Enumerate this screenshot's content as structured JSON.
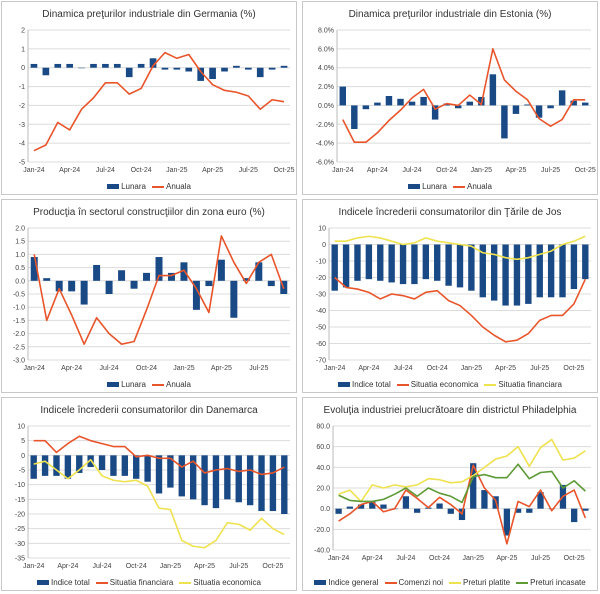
{
  "colors": {
    "bar": "#1a4a85",
    "orange": "#e8552b",
    "yellow": "#efe250",
    "green": "#5e9a35",
    "grid": "#dcdcdc"
  },
  "chart_data": [
    {
      "type": "bar+line",
      "title": "Dinamica preţurilor industriale din Germania (%)",
      "categories": [
        "Jan-24",
        "Feb-24",
        "Mar-24",
        "Apr-24",
        "May-24",
        "Jun-24",
        "Jul-24",
        "Aug-24",
        "Sep-24",
        "Oct-24",
        "Nov-24",
        "Dec-24",
        "Jan-25",
        "Feb-25",
        "Mar-25",
        "Apr-25",
        "May-25",
        "Jun-25",
        "Jul-25",
        "Aug-25",
        "Sep-25",
        "Oct-25"
      ],
      "xtick_labels": [
        "Jan-24",
        "Apr-24",
        "Jul-24",
        "Oct-24",
        "Jan-25",
        "Apr-25",
        "Jul-25",
        "Oct-25"
      ],
      "ylim": [
        -5,
        2
      ],
      "yticks": [
        2,
        1,
        0,
        -1,
        -2,
        -3,
        -4,
        -5
      ],
      "ytick_labels": [
        "2",
        "1",
        "0",
        "-1",
        "-2",
        "-3",
        "-4",
        "-5"
      ],
      "grid": true,
      "legend": "bottom",
      "series": [
        {
          "name": "Lunara",
          "kind": "bar",
          "color": "bar",
          "values": [
            0.2,
            -0.4,
            0.2,
            0.2,
            0,
            0.2,
            0.2,
            0.2,
            -0.5,
            0.2,
            0.5,
            -0.1,
            -0.1,
            -0.2,
            -0.7,
            -0.6,
            -0.2,
            0.1,
            -0.1,
            -0.5,
            -0.1,
            0.1
          ]
        },
        {
          "name": "Anuala",
          "kind": "line",
          "color": "orange",
          "values": [
            -4.4,
            -4.1,
            -2.9,
            -3.3,
            -2.2,
            -1.6,
            -0.8,
            -0.8,
            -1.4,
            -1.1,
            0.1,
            0.8,
            0.5,
            0.7,
            -0.2,
            -0.9,
            -1.2,
            -1.3,
            -1.5,
            -2.2,
            -1.7,
            -1.8
          ]
        }
      ]
    },
    {
      "type": "bar+line",
      "title": "Dinamica preţurilor industriale din Estonia (%)",
      "categories": [
        "Jan-24",
        "Feb-24",
        "Mar-24",
        "Apr-24",
        "May-24",
        "Jun-24",
        "Jul-24",
        "Aug-24",
        "Sep-24",
        "Oct-24",
        "Nov-24",
        "Dec-24",
        "Jan-25",
        "Feb-25",
        "Mar-25",
        "Apr-25",
        "May-25",
        "Jun-25",
        "Jul-25",
        "Aug-25",
        "Sep-25",
        "Oct-25"
      ],
      "xtick_labels": [
        "Jan-24",
        "Apr-24",
        "Jul-24",
        "Oct-24",
        "Jan-25",
        "Apr-25",
        "Jul-25",
        "Oct-25"
      ],
      "ylim": [
        -6,
        8
      ],
      "yticks": [
        8,
        6,
        4,
        2,
        0,
        -2,
        -4,
        -6
      ],
      "ytick_labels": [
        "8.0%",
        "6.0%",
        "4.0%",
        "2.0%",
        "0.0%",
        "-2.0%",
        "-4.0%",
        "-6.0%"
      ],
      "grid": true,
      "legend": "bottom",
      "series": [
        {
          "name": "Lunara",
          "kind": "bar",
          "color": "bar",
          "values": [
            2.0,
            -2.5,
            -0.4,
            0.3,
            1.0,
            0.7,
            0.4,
            0.9,
            -1.5,
            0.2,
            -0.3,
            0.4,
            0.9,
            3.3,
            -3.5,
            -0.9,
            0.1,
            -1.3,
            -0.3,
            1.6,
            0.5,
            0.3
          ]
        },
        {
          "name": "Anuala",
          "kind": "line",
          "color": "orange",
          "values": [
            -1.5,
            -3.9,
            -3.9,
            -2.9,
            -1.6,
            -0.5,
            0.8,
            1.7,
            -0.4,
            0.2,
            0.0,
            1.1,
            0.1,
            6.0,
            2.7,
            1.5,
            0.6,
            -1.4,
            -2.2,
            -1.5,
            0.6,
            0.6
          ]
        }
      ]
    },
    {
      "type": "bar+line",
      "title": "Producţia în sectorul construcţiilor din zona euro (%)",
      "categories": [
        "Jan-24",
        "Feb-24",
        "Mar-24",
        "Apr-24",
        "May-24",
        "Jun-24",
        "Jul-24",
        "Aug-24",
        "Sep-24",
        "Oct-24",
        "Nov-24",
        "Dec-24",
        "Jan-25",
        "Feb-25",
        "Mar-25",
        "Apr-25",
        "May-25",
        "Jun-25",
        "Jul-25",
        "Aug-25",
        "Sep-25"
      ],
      "xtick_labels": [
        "Jan-24",
        "Apr-24",
        "Jul-24",
        "Oct-24",
        "Jan-25",
        "Apr-25",
        "Jul-25"
      ],
      "ylim": [
        -3,
        2
      ],
      "yticks": [
        2,
        1.5,
        1,
        0.5,
        0,
        -0.5,
        -1,
        -1.5,
        -2,
        -2.5,
        -3
      ],
      "ytick_labels": [
        "2.0",
        "1.5",
        "1.0",
        "0.5",
        "0.0",
        "-0.5",
        "-1.0",
        "-1.5",
        "-2.0",
        "-2.5",
        "-3.0"
      ],
      "grid": true,
      "legend": "bottom",
      "series": [
        {
          "name": "Lunara",
          "kind": "bar",
          "color": "bar",
          "values": [
            0.9,
            0.1,
            -0.4,
            -0.4,
            -0.9,
            0.6,
            -0.5,
            0.4,
            -0.3,
            0.3,
            0.9,
            0.3,
            0.7,
            -1.1,
            -0.2,
            0.8,
            -1.4,
            0.1,
            0.7,
            -0.2,
            -0.5
          ]
        },
        {
          "name": "Anuala",
          "kind": "line",
          "color": "orange",
          "values": [
            1.0,
            -1.5,
            -0.3,
            -1.3,
            -2.4,
            -1.4,
            -2.0,
            -2.4,
            -2.3,
            -1.1,
            0.2,
            0.2,
            0.4,
            -0.3,
            -1.2,
            1.7,
            0.7,
            -0.1,
            0.7,
            1.0,
            -0.3
          ]
        }
      ]
    },
    {
      "type": "bar+line",
      "title": "Indicele încrederii consumatorilor din Ţările de Jos",
      "categories": [
        "Jan-24",
        "Feb-24",
        "Mar-24",
        "Apr-24",
        "May-24",
        "Jun-24",
        "Jul-24",
        "Aug-24",
        "Sep-24",
        "Oct-24",
        "Nov-24",
        "Dec-24",
        "Jan-25",
        "Feb-25",
        "Mar-25",
        "Apr-25",
        "May-25",
        "Jun-25",
        "Jul-25",
        "Aug-25",
        "Sep-25",
        "Oct-25",
        "Nov-25"
      ],
      "xtick_labels": [
        "Jan-24",
        "Apr-24",
        "Jul-24",
        "Oct-24",
        "Jan-25",
        "Apr-25",
        "Jul-25",
        "Oct-25"
      ],
      "ylim": [
        -70,
        10
      ],
      "yticks": [
        10,
        0,
        -10,
        -20,
        -30,
        -40,
        -50,
        -60,
        -70
      ],
      "ytick_labels": [
        "10",
        "0",
        "-10",
        "-20",
        "-30",
        "-40",
        "-50",
        "-60",
        "-70"
      ],
      "grid": true,
      "legend": "bottom",
      "series": [
        {
          "name": "Indice total",
          "kind": "bar",
          "color": "bar",
          "values": [
            -28,
            -26,
            -22,
            -21,
            -22,
            -23,
            -24,
            -24,
            -21,
            -22,
            -25,
            -26,
            -28,
            -32,
            -34,
            -37,
            -37,
            -36,
            -32,
            -32,
            -32,
            -27,
            -21
          ]
        },
        {
          "name": "Situatia economica",
          "kind": "line",
          "color": "orange",
          "values": [
            -20,
            -26,
            -27,
            -29,
            -33,
            -30,
            -31,
            -33,
            -29,
            -28,
            -34,
            -37,
            -43,
            -50,
            -55,
            -59,
            -58,
            -54,
            -46,
            -43,
            -43,
            -36,
            -21
          ]
        },
        {
          "name": "Situatia financiara",
          "kind": "line",
          "color": "yellow",
          "values": [
            2,
            2,
            4,
            5,
            4,
            2,
            0,
            1,
            4,
            2,
            1,
            0,
            -1,
            -5,
            -6,
            -8,
            -9,
            -8,
            -6,
            -4,
            0,
            2,
            5
          ]
        }
      ]
    },
    {
      "type": "bar+line",
      "title": "Indicele încrederii consumatorilor din Danemarca",
      "categories": [
        "Jan-24",
        "Feb-24",
        "Mar-24",
        "Apr-24",
        "May-24",
        "Jun-24",
        "Jul-24",
        "Aug-24",
        "Sep-24",
        "Oct-24",
        "Nov-24",
        "Dec-24",
        "Jan-25",
        "Feb-25",
        "Mar-25",
        "Apr-25",
        "May-25",
        "Jun-25",
        "Jul-25",
        "Aug-25",
        "Sep-25",
        "Oct-25",
        "Nov-25"
      ],
      "xtick_labels": [
        "Jan-24",
        "Apr-24",
        "Jul-24",
        "Oct-24",
        "Jan-25",
        "Apr-25",
        "Jul-25",
        "Oct-25"
      ],
      "ylim": [
        -35,
        10
      ],
      "yticks": [
        10,
        5,
        0,
        -5,
        -10,
        -15,
        -20,
        -25,
        -30,
        -35
      ],
      "ytick_labels": [
        "10",
        "5",
        "0",
        "-5",
        "-10",
        "-15",
        "-20",
        "-25",
        "-30",
        "-35"
      ],
      "grid": true,
      "legend": "bottom",
      "series": [
        {
          "name": "Indice total",
          "kind": "bar",
          "color": "bar",
          "values": [
            -8,
            -7,
            -7,
            -8,
            -6,
            -4,
            -5,
            -7,
            -7,
            -8,
            -9,
            -13,
            -11,
            -14,
            -15,
            -17,
            -18,
            -15,
            -16,
            -17,
            -19,
            -19,
            -20
          ]
        },
        {
          "name": "Situatia financiara",
          "kind": "line",
          "color": "orange",
          "values": [
            5,
            5,
            1,
            4,
            6.5,
            5,
            4,
            3,
            3,
            -0.5,
            0,
            -1,
            -1,
            -4,
            -2,
            -6,
            -5,
            -4.5,
            -5.5,
            -5,
            -6.5,
            -6,
            -4
          ]
        },
        {
          "name": "Situatia economica",
          "kind": "line",
          "color": "yellow",
          "values": [
            -3,
            -2,
            -5,
            -8,
            -5,
            -1.5,
            -7,
            -8.5,
            -9,
            -8.5,
            -10.5,
            -18,
            -18.5,
            -29,
            -31,
            -31.5,
            -29,
            -23,
            -23.5,
            -25.5,
            -21.5,
            -25,
            -27
          ]
        }
      ]
    },
    {
      "type": "bar+line",
      "title": "Evoluţia industriei prelucrătoare din districtul Philadelphia",
      "categories": [
        "Jan-24",
        "Feb-24",
        "Mar-24",
        "Apr-24",
        "May-24",
        "Jun-24",
        "Jul-24",
        "Aug-24",
        "Sep-24",
        "Oct-24",
        "Nov-24",
        "Dec-24",
        "Jan-25",
        "Feb-25",
        "Mar-25",
        "Apr-25",
        "May-25",
        "Jun-25",
        "Jul-25",
        "Aug-25",
        "Sep-25",
        "Oct-25",
        "Nov-25"
      ],
      "xtick_labels": [
        "Jan-24",
        "Apr-24",
        "Jul-24",
        "Oct-24",
        "Jan-25",
        "Apr-25",
        "Jul-25",
        "Oct-25"
      ],
      "ylim": [
        -40,
        80
      ],
      "yticks": [
        80,
        60,
        40,
        20,
        0,
        -20,
        -40
      ],
      "ytick_labels": [
        "80.0",
        "60.0",
        "40.0",
        "20.0",
        "0.0",
        "-20.0",
        "-40.0"
      ],
      "grid": true,
      "legend": "bottom",
      "series": [
        {
          "name": "Indice general",
          "kind": "bar",
          "color": "bar",
          "values": [
            -5,
            2,
            4,
            7,
            4,
            0,
            12,
            -4,
            1,
            5,
            -5,
            -11,
            44,
            18,
            12,
            -26,
            -4,
            -4,
            16,
            0,
            23,
            -13,
            -2
          ]
        },
        {
          "name": "Comenzi noi",
          "kind": "line",
          "color": "orange",
          "values": [
            -12,
            -5,
            4,
            7,
            -3,
            0,
            18,
            10,
            1,
            11,
            4,
            -5,
            42,
            20,
            8,
            -34,
            7,
            2,
            18,
            -2,
            12,
            18,
            -9
          ]
        },
        {
          "name": "Preturi platite",
          "kind": "line",
          "color": "yellow",
          "values": [
            14,
            18,
            7,
            23,
            20,
            23,
            21,
            23,
            29,
            28,
            25,
            26,
            32,
            40,
            48,
            51,
            60,
            41,
            59,
            67,
            47,
            49,
            56
          ]
        },
        {
          "name": "Preturi incasate",
          "kind": "line",
          "color": "green",
          "values": [
            13,
            8,
            7,
            7,
            9,
            14,
            20,
            12,
            20,
            15,
            12,
            6,
            31,
            33,
            30,
            30,
            43,
            29,
            35,
            36,
            20,
            27,
            17
          ]
        }
      ]
    }
  ]
}
